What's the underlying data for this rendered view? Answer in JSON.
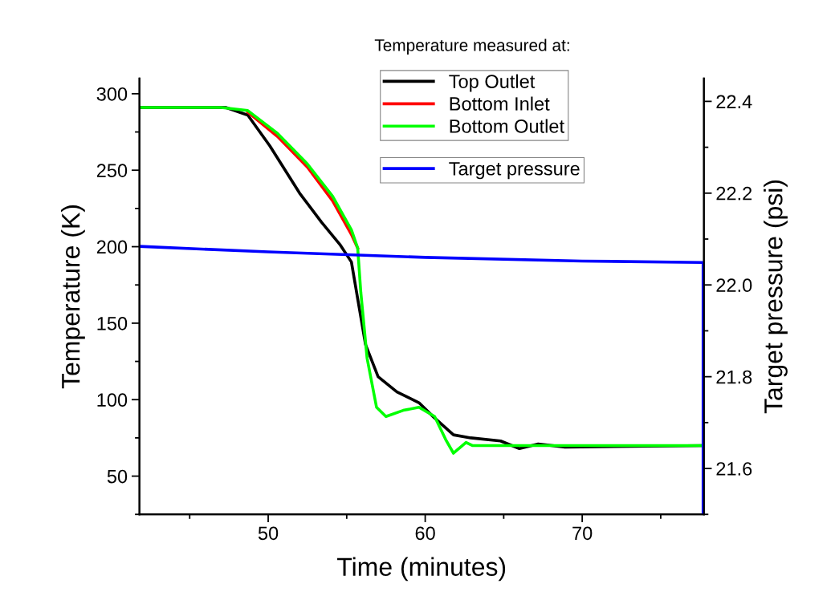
{
  "chart_data": {
    "type": "line",
    "xlabel": "Time (minutes)",
    "ylabel": "Temperature (K)",
    "y2label": "Target pressure (psi)",
    "legend_title": "Temperature measured at:",
    "legend": "top right",
    "grid": false,
    "xlim": [
      41.8,
      77.75
    ],
    "xticks": [
      50,
      60,
      70
    ],
    "ylim": [
      25,
      310
    ],
    "yticks": [
      50,
      100,
      150,
      200,
      250,
      300
    ],
    "y2lim": [
      21.5,
      22.45
    ],
    "y2ticks": [
      21.6,
      21.8,
      {
        "value": 22,
        "label": "22.0"
      },
      22.2,
      22.4
    ],
    "series": [
      {
        "name": "Top Outlet",
        "color": "#000000",
        "x": [
          41.8,
          47.3,
          48.7,
          50.1,
          52.0,
          53.4,
          54.6,
          55.3,
          55.8,
          56.2,
          57.0,
          58.2,
          59.6,
          60.6,
          61.8,
          62.9,
          64.8,
          66.0,
          67.2,
          68.9,
          77.7
        ],
        "values": [
          291,
          291,
          286,
          266,
          235,
          216,
          201,
          190,
          160,
          136,
          115,
          105,
          98,
          88,
          77,
          75,
          73,
          68,
          71,
          69,
          70
        ]
      },
      {
        "name": "Bottom Inlet",
        "color": "#ff0000",
        "x": [
          48.7,
          50.6,
          52.5,
          54.1,
          55.3,
          55.7
        ],
        "values": [
          288,
          272,
          252,
          230,
          208,
          199
        ]
      },
      {
        "name": "Bottom Outlet",
        "color": "#00ff00",
        "x": [
          41.8,
          47.0,
          48.7,
          50.6,
          52.5,
          54.1,
          55.3,
          55.7,
          55.9,
          56.3,
          56.9,
          57.5,
          58.6,
          59.6,
          60.6,
          61.3,
          61.8,
          62.6,
          63.0,
          77.7
        ],
        "values": [
          291,
          291,
          289,
          274,
          254,
          233,
          211,
          199,
          170,
          127,
          95,
          89,
          93,
          95,
          89,
          74,
          65,
          72,
          70,
          70
        ]
      },
      {
        "name": "Target pressure",
        "color": "#0000ff",
        "axis": "y2",
        "x": [
          41.8,
          50,
          60,
          70,
          77.7,
          77.7
        ],
        "values": [
          22.084,
          22.072,
          22.06,
          22.052,
          22.049,
          21.5
        ]
      }
    ]
  }
}
